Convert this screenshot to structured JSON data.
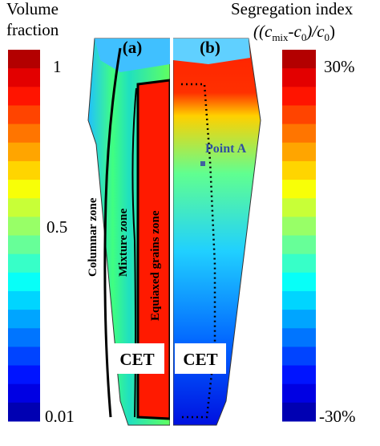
{
  "left_colorbar": {
    "title": [
      "Volume",
      "fraction"
    ],
    "labels": [
      "1",
      "0.5",
      "0.01"
    ]
  },
  "right_colorbar": {
    "title": "Segregation index",
    "formula": [
      "((c",
      "mix",
      "-c",
      "0",
      ")/c",
      "0",
      ")"
    ],
    "labels": [
      "30%",
      "-30%"
    ]
  },
  "panel_a": {
    "label": "(a)",
    "zones": [
      "Columnar zone",
      "Mixture zone",
      "Equiaxed grains zone"
    ],
    "cet": "CET"
  },
  "panel_b": {
    "label": "(b)",
    "point": "Point A",
    "cet": "CET"
  }
}
